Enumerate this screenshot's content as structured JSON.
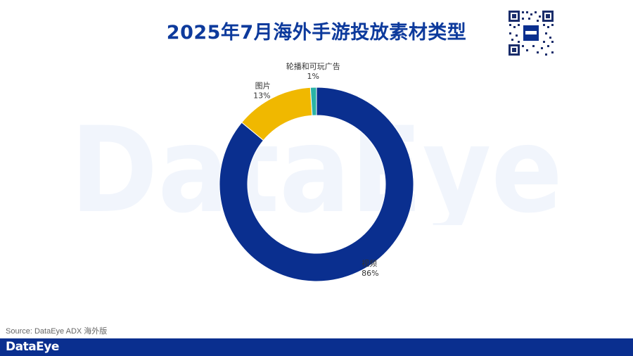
{
  "title": "2025年7月海外手游投放素材类型",
  "watermark_text": "DataEye",
  "footer": {
    "source": "Source: DataEye ADX 海外版",
    "logo": "DataEye"
  },
  "colors": {
    "title": "#0d3a9c",
    "footer_bar": "#0a2f8f"
  },
  "chart_data": {
    "type": "pie",
    "variant": "donut",
    "slices": [
      {
        "name": "视频",
        "value": 86,
        "label": "86%",
        "color": "#0a2f8f"
      },
      {
        "name": "图片",
        "value": 13,
        "label": "13%",
        "color": "#f0b800"
      },
      {
        "name": "轮播和可玩广告",
        "value": 1,
        "label": "1%",
        "color": "#2ab3a6"
      }
    ]
  }
}
